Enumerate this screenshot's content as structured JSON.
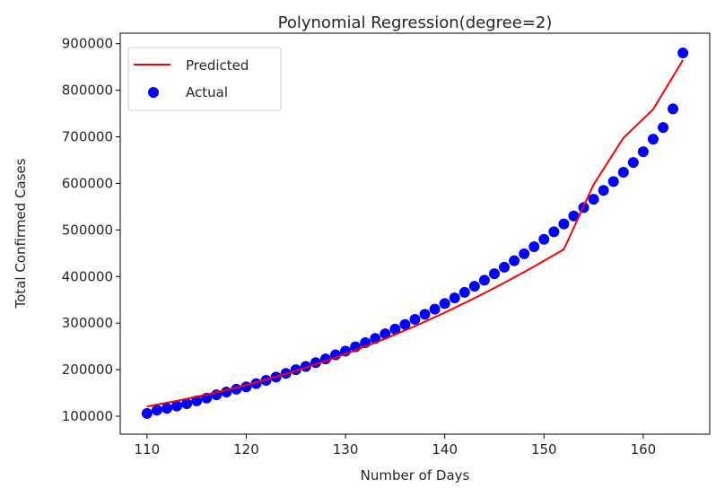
{
  "chart_data": {
    "type": "scatter",
    "title": "Polynomial Regression(degree=2)",
    "xlabel": "Number of Days",
    "ylabel": "Total Confirmed Cases",
    "xlim": [
      107.3,
      166.7
    ],
    "ylim": [
      61500,
      922500
    ],
    "x_ticks": [
      110,
      120,
      130,
      140,
      150,
      160
    ],
    "y_ticks": [
      100000,
      200000,
      300000,
      400000,
      500000,
      600000,
      700000,
      800000,
      900000
    ],
    "grid": false,
    "legend_position": "top-left",
    "series": [
      {
        "name": "Predicted",
        "kind": "line",
        "color": "#ff0000",
        "x": [
          110,
          113,
          116,
          119,
          122,
          125,
          128,
          131,
          134,
          137,
          140,
          143,
          146,
          149,
          152,
          155,
          158,
          161,
          164
        ],
        "values": [
          121000,
          133000,
          146500,
          161500,
          178500,
          197500,
          218500,
          241500,
          266500,
          293500,
          322500,
          353500,
          386500,
          421500,
          458500,
          597500,
          697500,
          759000,
          865000
        ]
      },
      {
        "name": "Actual",
        "kind": "scatter",
        "color": "#0000ff",
        "x": [
          110,
          111,
          112,
          113,
          114,
          115,
          116,
          117,
          118,
          119,
          120,
          121,
          122,
          123,
          124,
          125,
          126,
          127,
          128,
          129,
          130,
          131,
          132,
          133,
          134,
          135,
          136,
          137,
          138,
          139,
          140,
          141,
          142,
          143,
          144,
          145,
          146,
          147,
          148,
          149,
          150,
          151,
          152,
          153,
          154,
          155,
          156,
          157,
          158,
          159,
          160,
          161,
          162,
          163,
          164
        ],
        "values": [
          106000,
          113000,
          117000,
          122000,
          127000,
          133000,
          139000,
          146000,
          152000,
          158000,
          163000,
          170000,
          177000,
          184000,
          192000,
          200000,
          207000,
          215000,
          223000,
          232000,
          240000,
          249000,
          258000,
          267000,
          277000,
          287000,
          297000,
          308000,
          319000,
          330000,
          342000,
          354000,
          366000,
          379000,
          392000,
          406000,
          420000,
          434000,
          449000,
          464000,
          480000,
          496000,
          513000,
          530000,
          548000,
          566000,
          585000,
          604000,
          624000,
          645000,
          668000,
          695000,
          720000,
          760000,
          880000
        ]
      }
    ]
  }
}
